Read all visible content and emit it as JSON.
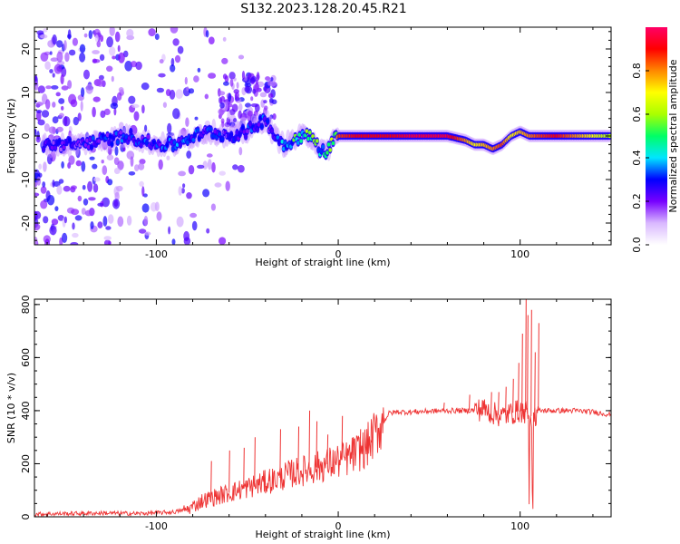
{
  "figure_title": "S132.2023.128.20.45.R21",
  "chart_data": [
    {
      "type": "heatmap",
      "title": "S132.2023.128.20.45.R21",
      "xlabel": "Height of straight line (km)",
      "ylabel": "Frequency (Hz)",
      "xlim": [
        -167,
        150
      ],
      "ylim": [
        -25,
        25
      ],
      "xticks": [
        -100,
        0,
        100
      ],
      "yticks": [
        -20,
        -10,
        0,
        10,
        20
      ],
      "colorbar": {
        "label": "Normalized spectral amplitude",
        "range": [
          0,
          1
        ],
        "ticks": [
          0.0,
          0.2,
          0.4,
          0.6,
          0.8
        ],
        "colormap": [
          "#ffffff",
          "#d9b8ff",
          "#7700ff",
          "#0000ff",
          "#00e6ff",
          "#00ff66",
          "#aaff00",
          "#ffff00",
          "#ff8800",
          "#ff0000",
          "#ff0066"
        ]
      },
      "ridge": {
        "x": [
          -145,
          -130,
          -115,
          -100,
          -90,
          -80,
          -70,
          -60,
          -50,
          -40,
          -35,
          -30,
          -25,
          -20,
          -15,
          -10,
          -7,
          -3,
          0,
          10,
          20,
          30,
          40,
          50,
          60,
          70,
          75,
          80,
          85,
          90,
          95,
          100,
          105,
          110,
          120,
          130,
          140,
          150
        ],
        "freq_hz": [
          -2,
          -1,
          0,
          -2,
          -2,
          0,
          1,
          0,
          1,
          4,
          0,
          -2,
          -1,
          0,
          0,
          -3,
          -4,
          -1,
          0,
          0,
          0,
          0,
          0,
          0,
          0,
          -1,
          -2,
          -2,
          -3,
          -2,
          0,
          1,
          0,
          0,
          0,
          0,
          0,
          0
        ],
        "amplitude": [
          0.25,
          0.3,
          0.3,
          0.3,
          0.35,
          0.3,
          0.3,
          0.25,
          0.3,
          0.3,
          0.25,
          0.4,
          0.5,
          0.55,
          0.6,
          0.5,
          0.4,
          0.65,
          0.85,
          0.9,
          0.9,
          0.9,
          0.95,
          0.95,
          0.95,
          0.8,
          0.7,
          0.75,
          0.8,
          0.85,
          0.7,
          0.75,
          0.8,
          0.85,
          0.9,
          0.8,
          0.7,
          0.6
        ]
      }
    },
    {
      "type": "line",
      "xlabel": "Height of straight line (km)",
      "ylabel": "SNR (10 * v/v)",
      "xlim": [
        -167,
        150
      ],
      "ylim": [
        0,
        820
      ],
      "xticks": [
        -100,
        0,
        100
      ],
      "yticks": [
        0,
        200,
        400,
        600,
        800
      ],
      "color": "#ee3333",
      "series": [
        {
          "x": [
            -167,
            -150,
            -130,
            -110,
            -90,
            -82,
            -75,
            -65,
            -55,
            -45,
            -35,
            -25,
            -15,
            -5,
            5,
            15,
            20,
            25,
            28,
            32,
            40,
            50,
            60,
            70,
            80,
            85,
            90,
            95,
            100,
            103,
            105,
            108,
            110,
            115,
            120,
            130,
            140,
            150
          ],
          "y": [
            10,
            12,
            14,
            12,
            18,
            30,
            60,
            80,
            100,
            120,
            140,
            165,
            180,
            200,
            220,
            260,
            310,
            360,
            390,
            395,
            395,
            398,
            400,
            400,
            405,
            390,
            380,
            390,
            400,
            395,
            380,
            380,
            400,
            400,
            400,
            400,
            395,
            385
          ]
        }
      ],
      "spikes": {
        "x": [
          -70,
          -60,
          -52,
          -46,
          -38,
          -32,
          -22,
          -16,
          -12,
          -6,
          2,
          8,
          12,
          18,
          58,
          72,
          79,
          84,
          88,
          92,
          96,
          99,
          101,
          103,
          104,
          106,
          108,
          110
        ],
        "y": [
          210,
          250,
          260,
          300,
          180,
          330,
          340,
          400,
          360,
          310,
          380,
          300,
          330,
          280,
          430,
          460,
          440,
          470,
          470,
          490,
          520,
          580,
          690,
          820,
          760,
          780,
          620,
          730
        ]
      }
    }
  ]
}
